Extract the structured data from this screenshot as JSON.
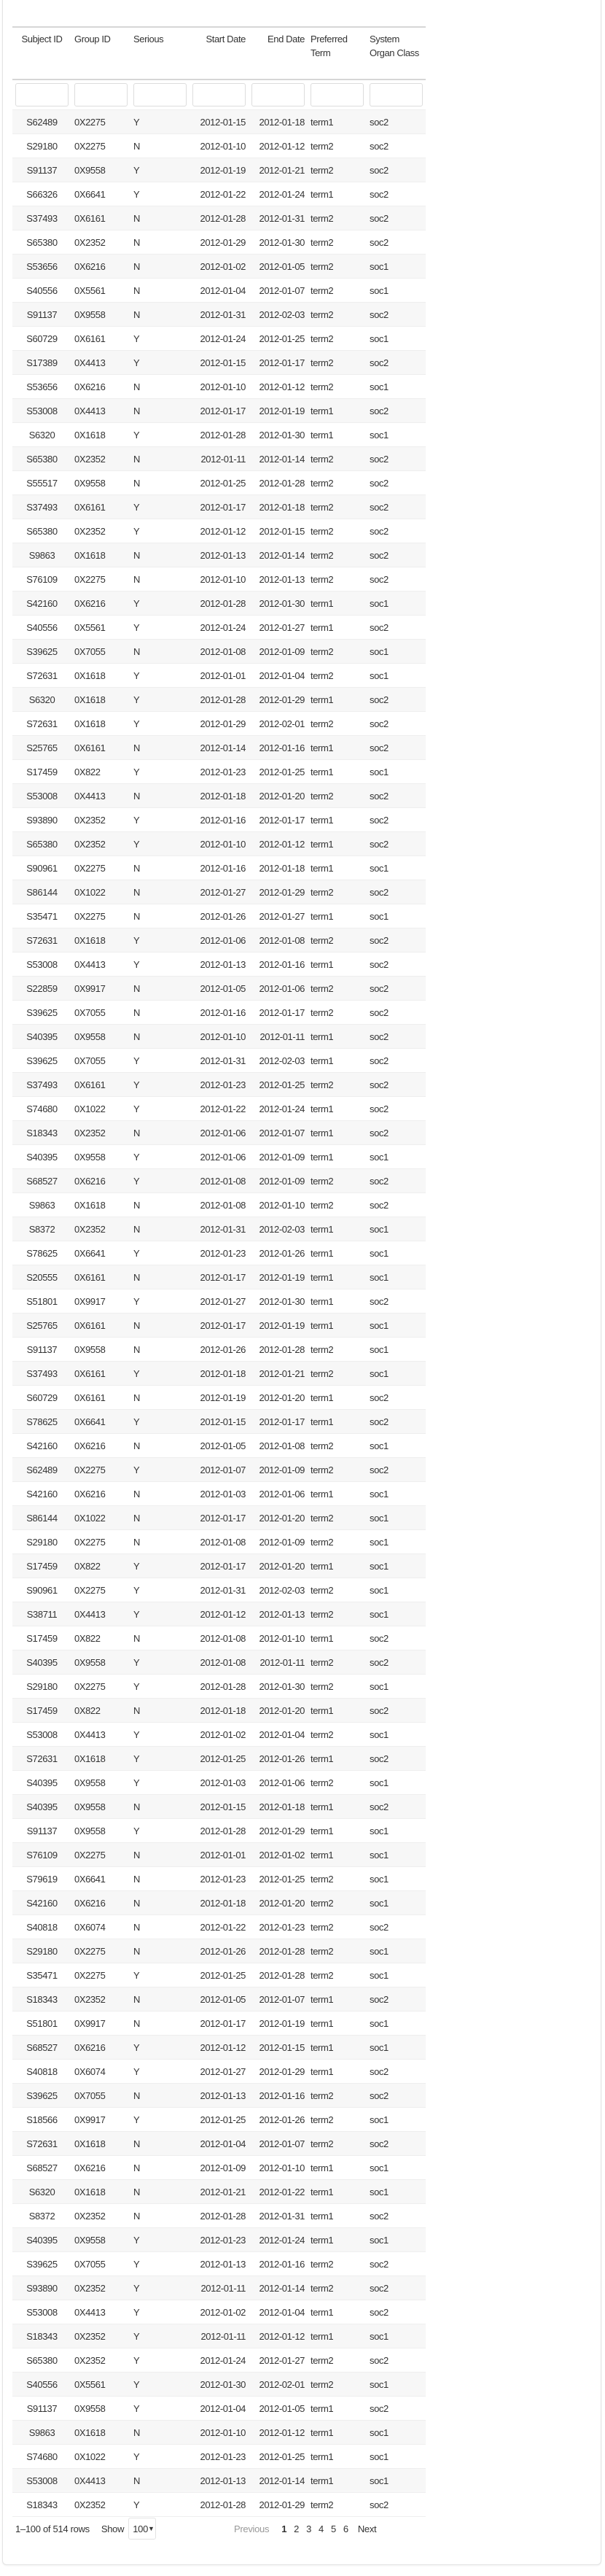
{
  "table": {
    "columns": [
      "Subject ID",
      "Group ID",
      "Serious",
      "Start Date",
      "End Date",
      "Preferred Term",
      "System Organ Class"
    ],
    "rows": [
      [
        "S62489",
        "0X2275",
        "Y",
        "2012-01-15",
        "2012-01-18",
        "term1",
        "soc2"
      ],
      [
        "S29180",
        "0X2275",
        "N",
        "2012-01-10",
        "2012-01-12",
        "term2",
        "soc2"
      ],
      [
        "S91137",
        "0X9558",
        "Y",
        "2012-01-19",
        "2012-01-21",
        "term2",
        "soc2"
      ],
      [
        "S66326",
        "0X6641",
        "Y",
        "2012-01-22",
        "2012-01-24",
        "term1",
        "soc2"
      ],
      [
        "S37493",
        "0X6161",
        "N",
        "2012-01-28",
        "2012-01-31",
        "term2",
        "soc2"
      ],
      [
        "S65380",
        "0X2352",
        "N",
        "2012-01-29",
        "2012-01-30",
        "term2",
        "soc2"
      ],
      [
        "S53656",
        "0X6216",
        "N",
        "2012-01-02",
        "2012-01-05",
        "term2",
        "soc1"
      ],
      [
        "S40556",
        "0X5561",
        "N",
        "2012-01-04",
        "2012-01-07",
        "term2",
        "soc1"
      ],
      [
        "S91137",
        "0X9558",
        "N",
        "2012-01-31",
        "2012-02-03",
        "term2",
        "soc2"
      ],
      [
        "S60729",
        "0X6161",
        "Y",
        "2012-01-24",
        "2012-01-25",
        "term2",
        "soc1"
      ],
      [
        "S17389",
        "0X4413",
        "Y",
        "2012-01-15",
        "2012-01-17",
        "term2",
        "soc2"
      ],
      [
        "S53656",
        "0X6216",
        "N",
        "2012-01-10",
        "2012-01-12",
        "term2",
        "soc1"
      ],
      [
        "S53008",
        "0X4413",
        "N",
        "2012-01-17",
        "2012-01-19",
        "term1",
        "soc2"
      ],
      [
        "S6320",
        "0X1618",
        "Y",
        "2012-01-28",
        "2012-01-30",
        "term1",
        "soc1"
      ],
      [
        "S65380",
        "0X2352",
        "N",
        "2012-01-11",
        "2012-01-14",
        "term2",
        "soc2"
      ],
      [
        "S55517",
        "0X9558",
        "N",
        "2012-01-25",
        "2012-01-28",
        "term2",
        "soc2"
      ],
      [
        "S37493",
        "0X6161",
        "Y",
        "2012-01-17",
        "2012-01-18",
        "term2",
        "soc2"
      ],
      [
        "S65380",
        "0X2352",
        "Y",
        "2012-01-12",
        "2012-01-15",
        "term2",
        "soc2"
      ],
      [
        "S9863",
        "0X1618",
        "N",
        "2012-01-13",
        "2012-01-14",
        "term2",
        "soc2"
      ],
      [
        "S76109",
        "0X2275",
        "N",
        "2012-01-10",
        "2012-01-13",
        "term2",
        "soc2"
      ],
      [
        "S42160",
        "0X6216",
        "Y",
        "2012-01-28",
        "2012-01-30",
        "term1",
        "soc1"
      ],
      [
        "S40556",
        "0X5561",
        "Y",
        "2012-01-24",
        "2012-01-27",
        "term1",
        "soc2"
      ],
      [
        "S39625",
        "0X7055",
        "N",
        "2012-01-08",
        "2012-01-09",
        "term2",
        "soc1"
      ],
      [
        "S72631",
        "0X1618",
        "Y",
        "2012-01-01",
        "2012-01-04",
        "term2",
        "soc1"
      ],
      [
        "S6320",
        "0X1618",
        "Y",
        "2012-01-28",
        "2012-01-29",
        "term1",
        "soc2"
      ],
      [
        "S72631",
        "0X1618",
        "Y",
        "2012-01-29",
        "2012-02-01",
        "term2",
        "soc2"
      ],
      [
        "S25765",
        "0X6161",
        "N",
        "2012-01-14",
        "2012-01-16",
        "term1",
        "soc2"
      ],
      [
        "S17459",
        "0X822",
        "Y",
        "2012-01-23",
        "2012-01-25",
        "term1",
        "soc1"
      ],
      [
        "S53008",
        "0X4413",
        "N",
        "2012-01-18",
        "2012-01-20",
        "term2",
        "soc2"
      ],
      [
        "S93890",
        "0X2352",
        "Y",
        "2012-01-16",
        "2012-01-17",
        "term1",
        "soc2"
      ],
      [
        "S65380",
        "0X2352",
        "Y",
        "2012-01-10",
        "2012-01-12",
        "term1",
        "soc2"
      ],
      [
        "S90961",
        "0X2275",
        "N",
        "2012-01-16",
        "2012-01-18",
        "term1",
        "soc1"
      ],
      [
        "S86144",
        "0X1022",
        "N",
        "2012-01-27",
        "2012-01-29",
        "term2",
        "soc2"
      ],
      [
        "S35471",
        "0X2275",
        "N",
        "2012-01-26",
        "2012-01-27",
        "term1",
        "soc1"
      ],
      [
        "S72631",
        "0X1618",
        "Y",
        "2012-01-06",
        "2012-01-08",
        "term2",
        "soc2"
      ],
      [
        "S53008",
        "0X4413",
        "Y",
        "2012-01-13",
        "2012-01-16",
        "term1",
        "soc2"
      ],
      [
        "S22859",
        "0X9917",
        "N",
        "2012-01-05",
        "2012-01-06",
        "term2",
        "soc2"
      ],
      [
        "S39625",
        "0X7055",
        "N",
        "2012-01-16",
        "2012-01-17",
        "term2",
        "soc2"
      ],
      [
        "S40395",
        "0X9558",
        "N",
        "2012-01-10",
        "2012-01-11",
        "term1",
        "soc2"
      ],
      [
        "S39625",
        "0X7055",
        "Y",
        "2012-01-31",
        "2012-02-03",
        "term1",
        "soc2"
      ],
      [
        "S37493",
        "0X6161",
        "Y",
        "2012-01-23",
        "2012-01-25",
        "term2",
        "soc2"
      ],
      [
        "S74680",
        "0X1022",
        "Y",
        "2012-01-22",
        "2012-01-24",
        "term1",
        "soc2"
      ],
      [
        "S18343",
        "0X2352",
        "N",
        "2012-01-06",
        "2012-01-07",
        "term1",
        "soc2"
      ],
      [
        "S40395",
        "0X9558",
        "Y",
        "2012-01-06",
        "2012-01-09",
        "term1",
        "soc1"
      ],
      [
        "S68527",
        "0X6216",
        "Y",
        "2012-01-08",
        "2012-01-09",
        "term2",
        "soc2"
      ],
      [
        "S9863",
        "0X1618",
        "N",
        "2012-01-08",
        "2012-01-10",
        "term2",
        "soc2"
      ],
      [
        "S8372",
        "0X2352",
        "N",
        "2012-01-31",
        "2012-02-03",
        "term1",
        "soc1"
      ],
      [
        "S78625",
        "0X6641",
        "Y",
        "2012-01-23",
        "2012-01-26",
        "term1",
        "soc1"
      ],
      [
        "S20555",
        "0X6161",
        "N",
        "2012-01-17",
        "2012-01-19",
        "term1",
        "soc1"
      ],
      [
        "S51801",
        "0X9917",
        "Y",
        "2012-01-27",
        "2012-01-30",
        "term1",
        "soc2"
      ],
      [
        "S25765",
        "0X6161",
        "N",
        "2012-01-17",
        "2012-01-19",
        "term1",
        "soc1"
      ],
      [
        "S91137",
        "0X9558",
        "N",
        "2012-01-26",
        "2012-01-28",
        "term2",
        "soc1"
      ],
      [
        "S37493",
        "0X6161",
        "Y",
        "2012-01-18",
        "2012-01-21",
        "term2",
        "soc1"
      ],
      [
        "S60729",
        "0X6161",
        "N",
        "2012-01-19",
        "2012-01-20",
        "term1",
        "soc2"
      ],
      [
        "S78625",
        "0X6641",
        "Y",
        "2012-01-15",
        "2012-01-17",
        "term1",
        "soc2"
      ],
      [
        "S42160",
        "0X6216",
        "N",
        "2012-01-05",
        "2012-01-08",
        "term2",
        "soc1"
      ],
      [
        "S62489",
        "0X2275",
        "Y",
        "2012-01-07",
        "2012-01-09",
        "term2",
        "soc2"
      ],
      [
        "S42160",
        "0X6216",
        "N",
        "2012-01-03",
        "2012-01-06",
        "term1",
        "soc1"
      ],
      [
        "S86144",
        "0X1022",
        "N",
        "2012-01-17",
        "2012-01-20",
        "term2",
        "soc1"
      ],
      [
        "S29180",
        "0X2275",
        "N",
        "2012-01-08",
        "2012-01-09",
        "term2",
        "soc1"
      ],
      [
        "S17459",
        "0X822",
        "Y",
        "2012-01-17",
        "2012-01-20",
        "term1",
        "soc1"
      ],
      [
        "S90961",
        "0X2275",
        "Y",
        "2012-01-31",
        "2012-02-03",
        "term2",
        "soc1"
      ],
      [
        "S38711",
        "0X4413",
        "Y",
        "2012-01-12",
        "2012-01-13",
        "term2",
        "soc1"
      ],
      [
        "S17459",
        "0X822",
        "N",
        "2012-01-08",
        "2012-01-10",
        "term1",
        "soc2"
      ],
      [
        "S40395",
        "0X9558",
        "Y",
        "2012-01-08",
        "2012-01-11",
        "term2",
        "soc2"
      ],
      [
        "S29180",
        "0X2275",
        "Y",
        "2012-01-28",
        "2012-01-30",
        "term2",
        "soc1"
      ],
      [
        "S17459",
        "0X822",
        "N",
        "2012-01-18",
        "2012-01-20",
        "term1",
        "soc2"
      ],
      [
        "S53008",
        "0X4413",
        "Y",
        "2012-01-02",
        "2012-01-04",
        "term2",
        "soc1"
      ],
      [
        "S72631",
        "0X1618",
        "Y",
        "2012-01-25",
        "2012-01-26",
        "term1",
        "soc2"
      ],
      [
        "S40395",
        "0X9558",
        "Y",
        "2012-01-03",
        "2012-01-06",
        "term2",
        "soc1"
      ],
      [
        "S40395",
        "0X9558",
        "N",
        "2012-01-15",
        "2012-01-18",
        "term1",
        "soc2"
      ],
      [
        "S91137",
        "0X9558",
        "Y",
        "2012-01-28",
        "2012-01-29",
        "term1",
        "soc1"
      ],
      [
        "S76109",
        "0X2275",
        "N",
        "2012-01-01",
        "2012-01-02",
        "term1",
        "soc1"
      ],
      [
        "S79619",
        "0X6641",
        "N",
        "2012-01-23",
        "2012-01-25",
        "term2",
        "soc1"
      ],
      [
        "S42160",
        "0X6216",
        "N",
        "2012-01-18",
        "2012-01-20",
        "term2",
        "soc1"
      ],
      [
        "S40818",
        "0X6074",
        "N",
        "2012-01-22",
        "2012-01-23",
        "term2",
        "soc2"
      ],
      [
        "S29180",
        "0X2275",
        "N",
        "2012-01-26",
        "2012-01-28",
        "term2",
        "soc1"
      ],
      [
        "S35471",
        "0X2275",
        "Y",
        "2012-01-25",
        "2012-01-28",
        "term2",
        "soc1"
      ],
      [
        "S18343",
        "0X2352",
        "N",
        "2012-01-05",
        "2012-01-07",
        "term1",
        "soc2"
      ],
      [
        "S51801",
        "0X9917",
        "N",
        "2012-01-17",
        "2012-01-19",
        "term1",
        "soc1"
      ],
      [
        "S68527",
        "0X6216",
        "Y",
        "2012-01-12",
        "2012-01-15",
        "term1",
        "soc1"
      ],
      [
        "S40818",
        "0X6074",
        "Y",
        "2012-01-27",
        "2012-01-29",
        "term1",
        "soc2"
      ],
      [
        "S39625",
        "0X7055",
        "N",
        "2012-01-13",
        "2012-01-16",
        "term2",
        "soc2"
      ],
      [
        "S18566",
        "0X9917",
        "Y",
        "2012-01-25",
        "2012-01-26",
        "term2",
        "soc1"
      ],
      [
        "S72631",
        "0X1618",
        "N",
        "2012-01-04",
        "2012-01-07",
        "term2",
        "soc2"
      ],
      [
        "S68527",
        "0X6216",
        "N",
        "2012-01-09",
        "2012-01-10",
        "term1",
        "soc1"
      ],
      [
        "S6320",
        "0X1618",
        "N",
        "2012-01-21",
        "2012-01-22",
        "term1",
        "soc1"
      ],
      [
        "S8372",
        "0X2352",
        "N",
        "2012-01-28",
        "2012-01-31",
        "term1",
        "soc2"
      ],
      [
        "S40395",
        "0X9558",
        "Y",
        "2012-01-23",
        "2012-01-24",
        "term1",
        "soc1"
      ],
      [
        "S39625",
        "0X7055",
        "Y",
        "2012-01-13",
        "2012-01-16",
        "term2",
        "soc2"
      ],
      [
        "S93890",
        "0X2352",
        "Y",
        "2012-01-11",
        "2012-01-14",
        "term2",
        "soc2"
      ],
      [
        "S53008",
        "0X4413",
        "Y",
        "2012-01-02",
        "2012-01-04",
        "term1",
        "soc2"
      ],
      [
        "S18343",
        "0X2352",
        "Y",
        "2012-01-11",
        "2012-01-12",
        "term1",
        "soc1"
      ],
      [
        "S65380",
        "0X2352",
        "Y",
        "2012-01-24",
        "2012-01-27",
        "term2",
        "soc2"
      ],
      [
        "S40556",
        "0X5561",
        "Y",
        "2012-01-30",
        "2012-02-01",
        "term2",
        "soc1"
      ],
      [
        "S91137",
        "0X9558",
        "Y",
        "2012-01-04",
        "2012-01-05",
        "term1",
        "soc2"
      ],
      [
        "S9863",
        "0X1618",
        "N",
        "2012-01-10",
        "2012-01-12",
        "term1",
        "soc1"
      ],
      [
        "S74680",
        "0X1022",
        "Y",
        "2012-01-23",
        "2012-01-25",
        "term1",
        "soc1"
      ],
      [
        "S53008",
        "0X4413",
        "N",
        "2012-01-13",
        "2012-01-14",
        "term1",
        "soc1"
      ],
      [
        "S18343",
        "0X2352",
        "Y",
        "2012-01-28",
        "2012-01-29",
        "term2",
        "soc2"
      ]
    ]
  },
  "footer": {
    "rows_info": "1–100 of 514 rows",
    "show_label": "Show",
    "page_size": "100",
    "page_size_icon": "chevron-down-icon",
    "previous": "Previous",
    "pages": [
      "1",
      "2",
      "3",
      "4",
      "5",
      "6"
    ],
    "current_page": "1",
    "next": "Next"
  }
}
